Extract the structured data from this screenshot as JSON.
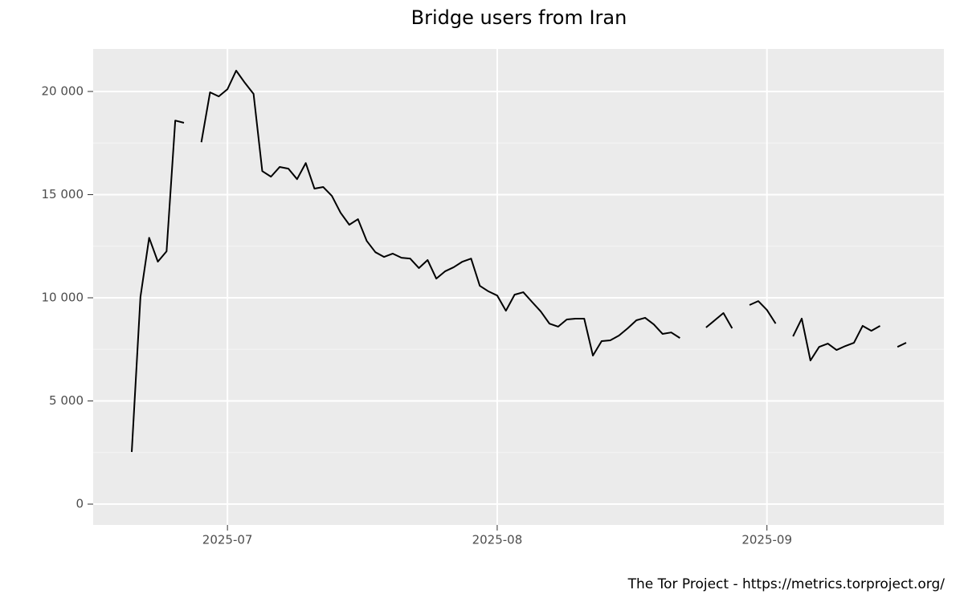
{
  "chart_data": {
    "type": "line",
    "title": "Bridge users from Iran",
    "caption": "The Tor Project - https://metrics.torproject.org/",
    "categories": [
      null,
      null,
      null,
      null,
      null,
      null,
      null,
      null,
      null,
      null,
      null,
      "2025-07",
      null,
      null,
      null,
      null,
      null,
      null,
      null,
      null,
      null,
      null,
      null,
      null,
      null,
      null,
      null,
      null,
      null,
      null,
      null,
      null,
      null,
      null,
      null,
      null,
      null,
      null,
      null,
      null,
      null,
      null,
      "2025-08",
      null,
      null,
      null,
      null,
      null,
      null,
      null,
      null,
      null,
      null,
      null,
      null,
      null,
      null,
      null,
      null,
      null,
      null,
      null,
      null,
      null,
      null,
      null,
      null,
      null,
      null,
      null,
      null,
      null,
      null,
      "2025-09",
      null,
      null,
      null,
      null,
      null,
      null,
      null,
      null,
      null,
      null,
      null,
      null,
      null,
      null,
      null,
      null
    ],
    "values": [
      2530,
      10040,
      12910,
      11750,
      12250,
      18590,
      18480,
      null,
      17540,
      19960,
      19760,
      20110,
      21010,
      20420,
      19880,
      16140,
      15870,
      16340,
      16260,
      15750,
      16530,
      15290,
      15370,
      14940,
      14120,
      13540,
      13810,
      12760,
      12210,
      11980,
      12140,
      11940,
      11900,
      11440,
      11830,
      10930,
      11280,
      11480,
      11750,
      11900,
      10580,
      10310,
      10110,
      9370,
      10150,
      10270,
      9800,
      9340,
      8750,
      8600,
      8950,
      8990,
      8990,
      7200,
      7900,
      7940,
      8170,
      8520,
      8910,
      9030,
      8710,
      8250,
      8320,
      8050,
      null,
      null,
      8560,
      8910,
      9260,
      8520,
      null,
      9650,
      9840,
      9410,
      8750,
      null,
      8130,
      8990,
      6960,
      7620,
      7780,
      7470,
      7660,
      7820,
      8640,
      8400,
      8640,
      null,
      7620,
      7820
    ],
    "color": "#000000",
    "ylim": [
      -1010,
      22060
    ],
    "yticks": [
      0,
      {
        "value": 5000,
        "label": "5 000"
      },
      {
        "value": 10000,
        "label": "10 000"
      },
      {
        "value": 15000,
        "label": "15 000"
      },
      {
        "value": 20000,
        "label": "20 000"
      }
    ],
    "grid": true
  }
}
